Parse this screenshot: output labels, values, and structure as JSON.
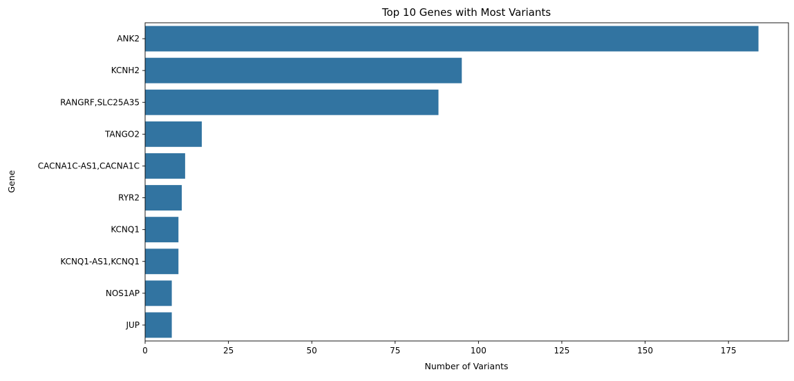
{
  "chart_data": {
    "type": "bar",
    "orientation": "horizontal",
    "title": "Top 10 Genes with Most Variants",
    "xlabel": "Number of Variants",
    "ylabel": "Gene",
    "categories": [
      "ANK2",
      "KCNH2",
      "RANGRF,SLC25A35",
      "TANGO2",
      "CACNA1C-AS1,CACNA1C",
      "RYR2",
      "KCNQ1",
      "KCNQ1-AS1,KCNQ1",
      "NOS1AP",
      "JUP"
    ],
    "values": [
      184,
      95,
      88,
      17,
      12,
      11,
      10,
      10,
      8,
      8
    ],
    "xlim": [
      0,
      193
    ],
    "xticks": [
      0,
      25,
      50,
      75,
      100,
      125,
      150,
      175
    ],
    "grid": false,
    "legend": "none",
    "bar_color": "#3274a1"
  }
}
